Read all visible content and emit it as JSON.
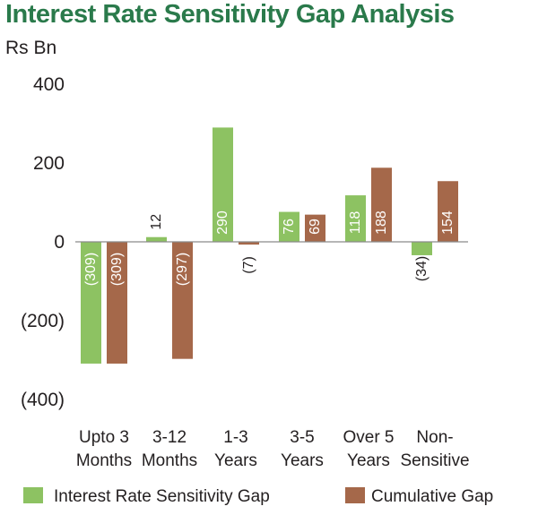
{
  "chart_data": {
    "type": "bar",
    "title": "Interest Rate Sensitivity Gap Analysis",
    "unit_label": "Rs Bn",
    "categories": [
      [
        "Upto 3",
        "Months"
      ],
      [
        "3-12",
        "Months"
      ],
      [
        "1-3",
        "Years"
      ],
      [
        "3-5",
        "Years"
      ],
      [
        "Over 5",
        "Years"
      ],
      [
        "Non-",
        "Sensitive"
      ]
    ],
    "series": [
      {
        "name": "Interest Rate Sensitivity Gap",
        "color": "#8dc262",
        "values": [
          -309,
          12,
          290,
          76,
          118,
          -34
        ],
        "labels": [
          "(309)",
          "12",
          "290",
          "76",
          "118",
          "(34)"
        ]
      },
      {
        "name": "Cumulative Gap",
        "color": "#a5684a",
        "values": [
          -309,
          -297,
          -7,
          69,
          188,
          154
        ],
        "labels": [
          "(309)",
          "(297)",
          "(7)",
          "69",
          "188",
          "154"
        ]
      }
    ],
    "ylim": [
      -400,
      400
    ],
    "y_ticks": [
      {
        "value": 400,
        "label": "400"
      },
      {
        "value": 200,
        "label": "200"
      },
      {
        "value": 0,
        "label": "0"
      },
      {
        "value": -200,
        "label": "(200)"
      },
      {
        "value": -400,
        "label": "(400)"
      }
    ],
    "grid": false,
    "legend_position": "bottom"
  }
}
